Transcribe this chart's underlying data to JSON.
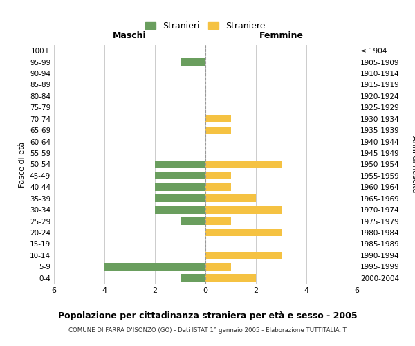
{
  "age_groups": [
    "100+",
    "95-99",
    "90-94",
    "85-89",
    "80-84",
    "75-79",
    "70-74",
    "65-69",
    "60-64",
    "55-59",
    "50-54",
    "45-49",
    "40-44",
    "35-39",
    "30-34",
    "25-29",
    "20-24",
    "15-19",
    "10-14",
    "5-9",
    "0-4"
  ],
  "birth_years": [
    "≤ 1904",
    "1905-1909",
    "1910-1914",
    "1915-1919",
    "1920-1924",
    "1925-1929",
    "1930-1934",
    "1935-1939",
    "1940-1944",
    "1945-1949",
    "1950-1954",
    "1955-1959",
    "1960-1964",
    "1965-1969",
    "1970-1974",
    "1975-1979",
    "1980-1984",
    "1985-1989",
    "1990-1994",
    "1995-1999",
    "2000-2004"
  ],
  "males": [
    0,
    1,
    0,
    0,
    0,
    0,
    0,
    0,
    0,
    0,
    2,
    2,
    2,
    2,
    2,
    1,
    0,
    0,
    0,
    4,
    1
  ],
  "females": [
    0,
    0,
    0,
    0,
    0,
    0,
    1,
    1,
    0,
    0,
    3,
    1,
    1,
    2,
    3,
    1,
    3,
    0,
    3,
    1,
    2
  ],
  "male_color": "#6a9e5e",
  "female_color": "#f5c242",
  "title": "Popolazione per cittadinanza straniera per età e sesso - 2005",
  "subtitle": "COMUNE DI FARRA D'ISONZO (GO) - Dati ISTAT 1° gennaio 2005 - Elaborazione TUTTITALIA.IT",
  "legend_male": "Stranieri",
  "legend_female": "Straniere",
  "xlabel_left": "Maschi",
  "xlabel_right": "Femmine",
  "ylabel": "Fasce di età",
  "ylabel_right": "Anni di nascita",
  "xlim": 6,
  "background_color": "#ffffff",
  "grid_color": "#cccccc"
}
